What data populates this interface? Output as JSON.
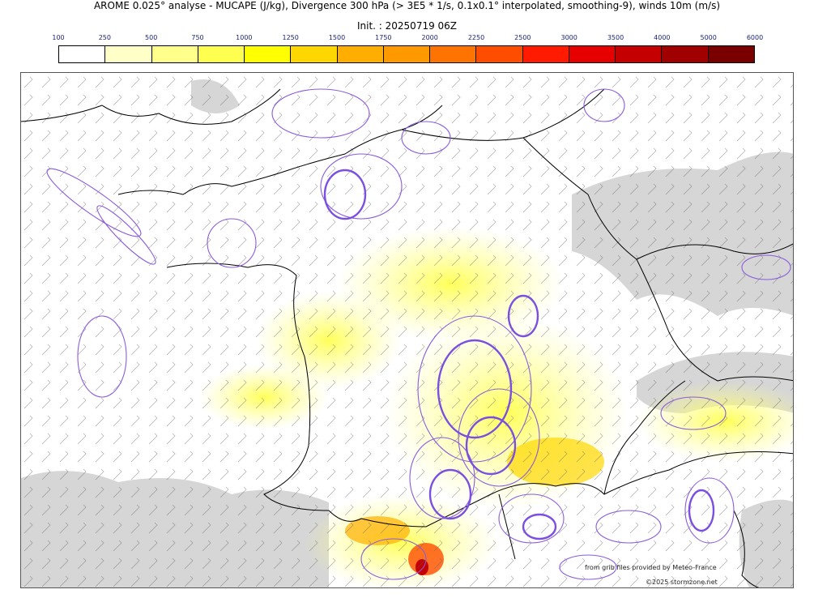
{
  "title": "AROME 0.025° analyse - MUCAPE (J/kg), Divergence 300 hPa (> 3E5 * 1/s, 0.1x0.1° interpolated, smoothing-9), winds 10m (m/s)",
  "init": "Init. : 20250719 06Z",
  "colorbar": {
    "ticks": [
      "100",
      "250",
      "500",
      "750",
      "1000",
      "1250",
      "1500",
      "1750",
      "2000",
      "2250",
      "2500",
      "3000",
      "3500",
      "4000",
      "5000",
      "6000"
    ],
    "colors": [
      "#ffffff",
      "#ffffc8",
      "#ffff8c",
      "#ffff50",
      "#ffff00",
      "#ffd700",
      "#ffae00",
      "#ff9900",
      "#ff7300",
      "#ff4d00",
      "#ff1a00",
      "#e60000",
      "#c40000",
      "#a00000",
      "#7a0000"
    ]
  },
  "credits": {
    "source": "from grib files provided by Meteo-France",
    "copyright": "©2025 stormzone.net"
  }
}
